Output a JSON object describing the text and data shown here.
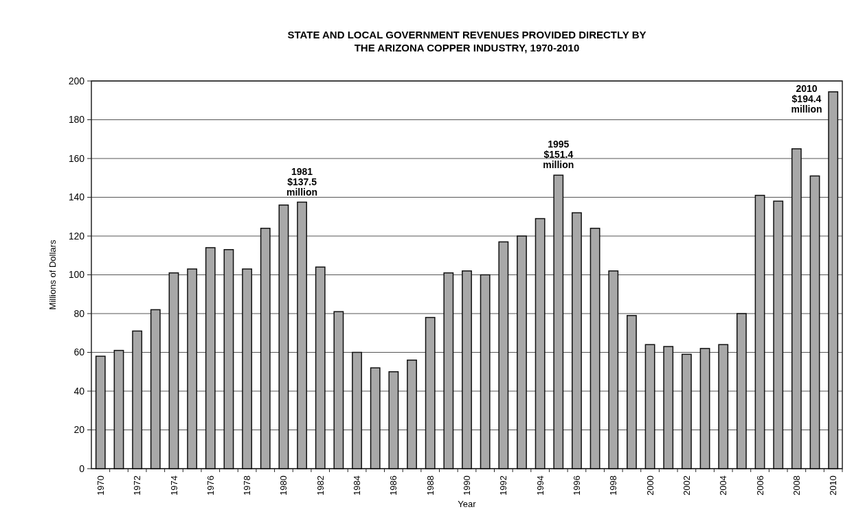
{
  "chart_data": {
    "type": "bar",
    "title": "STATE AND LOCAL GOVERNMENT REVENUES PROVIDED DIRECTLY BY\nTHE ARIZONA COPPER INDUSTRY, 1970-2010",
    "xlabel": "Year",
    "ylabel": "Millions of Dollars",
    "categories": [
      "1970",
      null,
      "1972",
      null,
      "1974",
      null,
      "1976",
      null,
      "1978",
      null,
      "1980",
      null,
      "1982",
      null,
      "1984",
      null,
      "1986",
      null,
      "1988",
      null,
      "1990",
      null,
      "1992",
      null,
      "1994",
      null,
      "1996",
      null,
      "1998",
      null,
      "2000",
      null,
      "2002",
      null,
      "2004",
      null,
      "2006",
      null,
      "2008",
      null,
      "2010"
    ],
    "values": [
      58,
      61,
      71,
      82,
      101,
      103,
      114,
      113,
      103,
      124,
      136,
      137.5,
      104,
      81,
      60,
      52,
      50,
      56,
      78,
      101,
      102,
      100,
      117,
      120,
      129,
      151.4,
      132,
      124,
      102,
      79,
      64,
      63,
      59,
      62,
      64,
      80,
      141,
      138,
      165,
      151,
      194.4
    ],
    "color": "#a8a8a8",
    "ylim": [
      0,
      200
    ],
    "yticks": [
      0,
      20,
      40,
      60,
      80,
      100,
      120,
      140,
      160,
      180,
      200
    ],
    "grid": "y",
    "annotations": [
      {
        "text": "1981\n$137.5\nmillion",
        "y": 137.5
      },
      {
        "text": "1995\n$151.4\nmillion",
        "y": 151.4
      },
      {
        "text": "2010\n$194.4\nmillion",
        "x": "2010",
        "y": 194.4
      }
    ]
  }
}
